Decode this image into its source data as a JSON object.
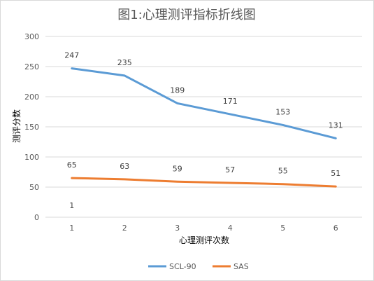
{
  "chart_data": {
    "type": "line",
    "title": "图1:心理测评指标折线图",
    "xlabel": "心理测评次数",
    "ylabel": "测评分数",
    "categories": [
      "1",
      "2",
      "3",
      "4",
      "5",
      "6"
    ],
    "ylim": [
      0,
      300
    ],
    "yticks": [
      0,
      50,
      100,
      150,
      200,
      250,
      300
    ],
    "ytick_labels": [
      "0",
      "50",
      "100",
      "150",
      "200",
      "250",
      "300"
    ],
    "grid": true,
    "legend": "bottom",
    "series": [
      {
        "name": "SCL-90",
        "values": [
          247,
          235,
          189,
          171,
          153,
          131
        ],
        "labels": [
          "247",
          "235",
          "189",
          "171",
          "153",
          "131"
        ],
        "color": "#5b9bd5"
      },
      {
        "name": "SAS",
        "values": [
          65,
          63,
          59,
          57,
          55,
          51
        ],
        "labels": [
          "65",
          "63",
          "59",
          "57",
          "55",
          "51"
        ],
        "color": "#ed7d31"
      }
    ],
    "annotations": [
      {
        "x": "1",
        "y": 20,
        "text": "1"
      }
    ]
  }
}
